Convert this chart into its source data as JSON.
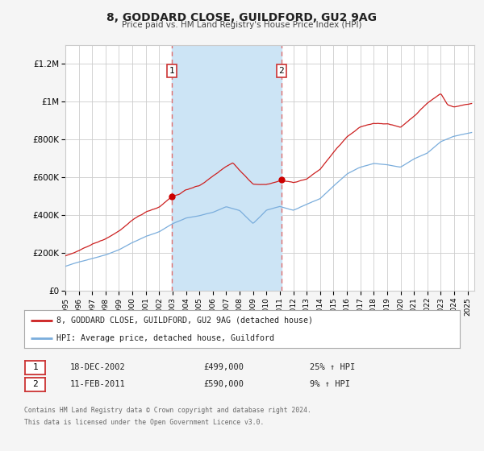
{
  "title": "8, GODDARD CLOSE, GUILDFORD, GU2 9AG",
  "subtitle": "Price paid vs. HM Land Registry's House Price Index (HPI)",
  "ylim": [
    0,
    1300000
  ],
  "xlim_start": 1995.0,
  "xlim_end": 2025.5,
  "yticks": [
    0,
    200000,
    400000,
    600000,
    800000,
    1000000,
    1200000
  ],
  "ytick_labels": [
    "£0",
    "£200K",
    "£400K",
    "£600K",
    "£800K",
    "£1M",
    "£1.2M"
  ],
  "background_color": "#f5f5f5",
  "plot_bg_color": "#ffffff",
  "grid_color": "#cccccc",
  "sale1_date": 2002.96,
  "sale1_price": 499000,
  "sale2_date": 2011.12,
  "sale2_price": 590000,
  "shaded_color": "#cce4f5",
  "dashed_line_color": "#e07070",
  "dot_color": "#cc0000",
  "red_line_color": "#cc2020",
  "blue_line_color": "#7aaddc",
  "legend_label_red": "8, GODDARD CLOSE, GUILDFORD, GU2 9AG (detached house)",
  "legend_label_blue": "HPI: Average price, detached house, Guildford",
  "transaction1_date": "18-DEC-2002",
  "transaction1_price": "£499,000",
  "transaction1_hpi": "25% ↑ HPI",
  "transaction2_date": "11-FEB-2011",
  "transaction2_price": "£590,000",
  "transaction2_hpi": "9% ↑ HPI",
  "footnote_line1": "Contains HM Land Registry data © Crown copyright and database right 2024.",
  "footnote_line2": "This data is licensed under the Open Government Licence v3.0.",
  "xtick_years": [
    1995,
    1996,
    1997,
    1998,
    1999,
    2000,
    2001,
    2002,
    2003,
    2004,
    2005,
    2006,
    2007,
    2008,
    2009,
    2010,
    2011,
    2012,
    2013,
    2014,
    2015,
    2016,
    2017,
    2018,
    2019,
    2020,
    2021,
    2022,
    2023,
    2024,
    2025
  ]
}
